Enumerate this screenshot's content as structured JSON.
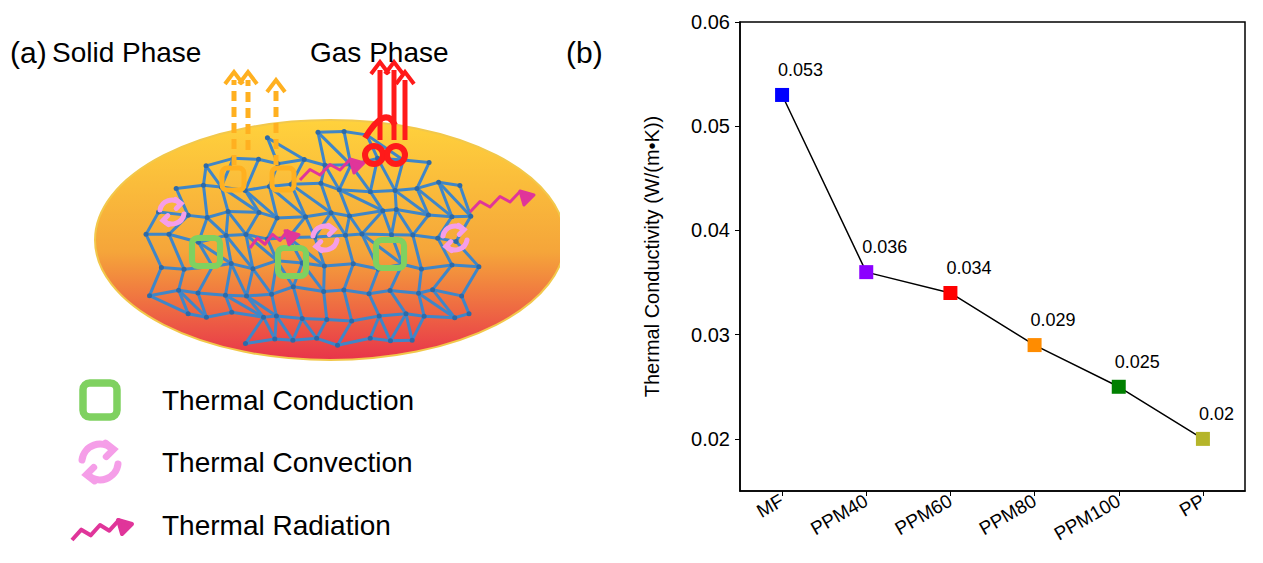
{
  "diagram": {
    "panel_label": "(a)",
    "phase_labels": [
      "Solid Phase",
      "Gas Phase"
    ],
    "legend": [
      {
        "label": "Thermal Conduction"
      },
      {
        "label": "Thermal Convection"
      },
      {
        "label": "Thermal Radiation"
      }
    ]
  },
  "chart_data": {
    "type": "line",
    "panel_label": "(b)",
    "y_label": "Thermal Conductivity (W/(m•K))",
    "categories": [
      "MF",
      "PPM40",
      "PPM60",
      "PPM80",
      "PPM100",
      "PP"
    ],
    "values": [
      0.053,
      0.036,
      0.034,
      0.029,
      0.025,
      0.02
    ],
    "colors": [
      "#0000ff",
      "#8b00ff",
      "#ff0000",
      "#ff8c00",
      "#008000",
      "#b5b52a"
    ],
    "color": "#000000",
    "marker": "square",
    "ylim": [
      0.015,
      0.06
    ],
    "yticks": [
      0.02,
      0.03,
      0.04,
      0.05,
      0.06
    ],
    "grid": false,
    "data_labels": true
  }
}
